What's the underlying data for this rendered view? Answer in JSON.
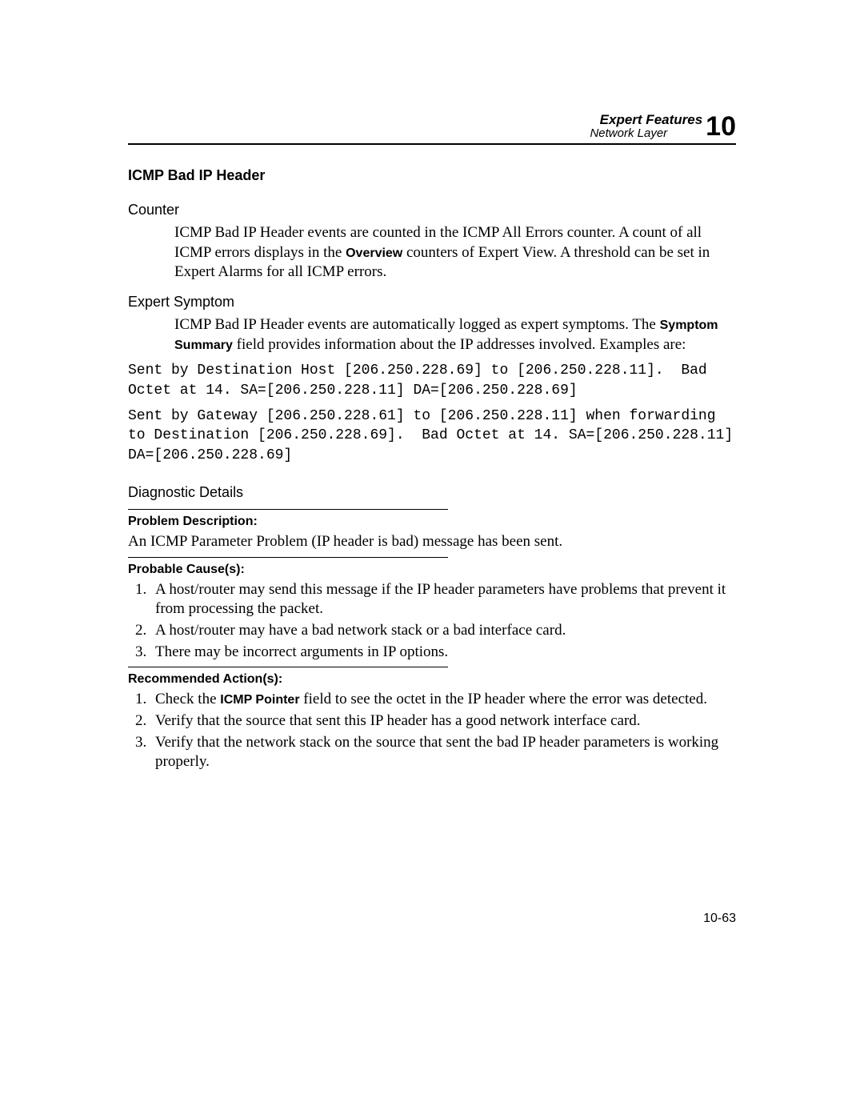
{
  "header": {
    "title": "Expert Features",
    "subtitle": "Network Layer",
    "chapter": "10"
  },
  "section_title": "ICMP Bad IP Header",
  "counter": {
    "heading": "Counter",
    "text_before": "ICMP Bad IP Header events are counted in the ICMP All Errors counter. A count of all ICMP errors displays in the ",
    "bold": "Overview",
    "text_after": " counters of Expert View. A threshold can be set in Expert Alarms for all ICMP errors."
  },
  "symptom": {
    "heading": "Expert Symptom",
    "text_before": "ICMP Bad IP Header events are automatically logged as expert symptoms. The ",
    "bold": "Symptom Summary",
    "text_after": " field provides information about the IP addresses involved. Examples are:",
    "mono1": "Sent by Destination Host [206.250.228.69] to [206.250.228.11].  Bad Octet at 14. SA=[206.250.228.11] DA=[206.250.228.69]",
    "mono2": "Sent by Gateway [206.250.228.61] to [206.250.228.11] when forwarding to Destination [206.250.228.69].  Bad Octet at 14. SA=[206.250.228.11] DA=[206.250.228.69]"
  },
  "diagnostic": {
    "heading": "Diagnostic Details",
    "problem_label": "Problem Description:",
    "problem_text": "An ICMP Parameter Problem (IP header is bad) message has been sent.",
    "causes_label": "Probable Cause(s):",
    "causes": [
      "A host/router may send this message if the IP header parameters have problems that prevent it from processing the packet.",
      "A host/router may have a bad network stack or a bad interface card.",
      "There may be incorrect arguments in IP options."
    ],
    "actions_label": "Recommended Action(s):",
    "action1_before": "Check the ",
    "action1_bold": "ICMP Pointer",
    "action1_after": " field to see the octet in the IP header where the error was detected.",
    "action2": "Verify that the source that sent this IP header has a good network interface card.",
    "action3": "Verify that the network stack on the source that sent the bad IP header parameters is working properly."
  },
  "page_number": "10-63"
}
